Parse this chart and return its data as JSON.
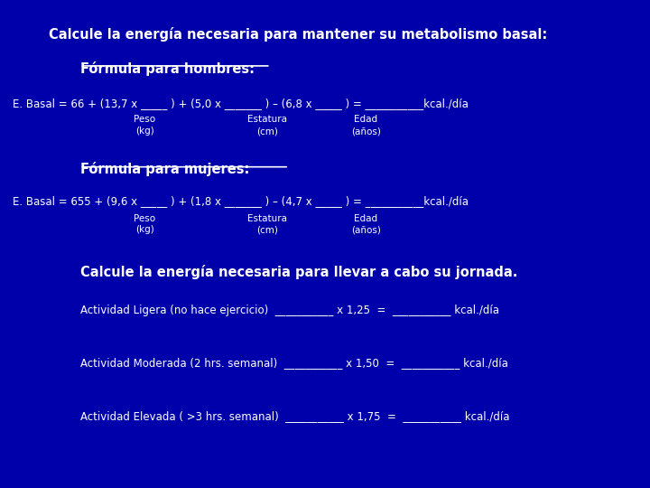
{
  "bg_color": "#0000AA",
  "text_color": "#FFFFFF",
  "title": "Calcule la energía necesaria para mantener su metabolismo basal:",
  "subtitle1": "Fórmula para hombres:",
  "formula_men_line1": "E. Basal = 66 + (13,7 x _____ ) + (5,0 x _______ ) – (6,8 x _____ ) = ___________kcal./día",
  "formula_men_sub1": "Peso",
  "formula_men_sub2": "(kg)",
  "formula_men_sub3": "Estatura",
  "formula_men_sub4": "(cm)",
  "formula_men_sub5": "Edad",
  "formula_men_sub6": "(años)",
  "subtitle2": "Fórmula para mujeres:",
  "formula_women_line1": "E. Basal = 655 + (9,6 x _____ ) + (1,8 x _______ ) – (4,7 x _____ ) = ___________kcal./día",
  "formula_women_sub1": "Peso",
  "formula_women_sub2": "(kg)",
  "formula_women_sub3": "Estatura",
  "formula_women_sub4": "(cm)",
  "formula_women_sub5": "Edad",
  "formula_women_sub6": "(años)",
  "jornada_title": "Calcule la energía necesaria para llevar a cabo su jornada.",
  "activity1": "Actividad Ligera (no hace ejercicio)  ___________ x 1,25  =  ___________ kcal./día",
  "activity2": "Actividad Moderada (2 hrs. semanal)  ___________ x 1,50  =  ___________ kcal./día",
  "activity3": "Actividad Elevada ( >3 hrs. semanal)  ___________ x 1,75  =  ___________ kcal./día"
}
